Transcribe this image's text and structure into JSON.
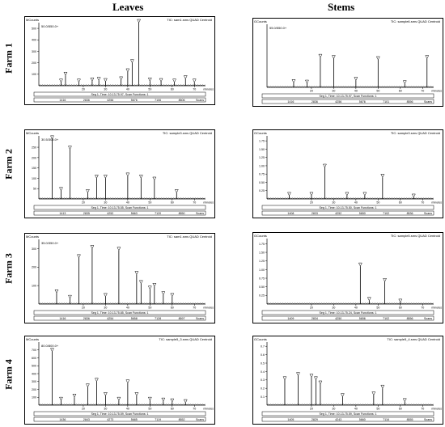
{
  "columns": [
    "Leaves",
    "Stems"
  ],
  "farms": [
    "Farm 1",
    "Farm 2",
    "Farm 3",
    "Farm 4"
  ],
  "chart_data": [
    {
      "type": "line",
      "farm": "Farm 1",
      "tissue": "Leaves",
      "title": "TIC: sam1.sms QUAD Centroid",
      "y_unit": "MCounts",
      "y_top_label": "50.0/550.0+",
      "y_ticks": [
        "100",
        "200",
        "300",
        "400",
        "500"
      ],
      "ylim": [
        0,
        550
      ],
      "xlim": [
        0,
        75
      ],
      "x_ticks": [
        "20",
        "30",
        "40",
        "50",
        "60",
        "70"
      ],
      "xlabel": "minutes",
      "scan_ticks": [
        "1416",
        "2836",
        "4256",
        "5676",
        "7106",
        "8506"
      ],
      "scan_unit": "Scans",
      "footer": "Seg 1, Time: 10.13-75.97, Scan Functions: 1",
      "peaks": [
        [
          10,
          30
        ],
        [
          12,
          90
        ],
        [
          18,
          30
        ],
        [
          24,
          40
        ],
        [
          27,
          45
        ],
        [
          30,
          35
        ],
        [
          37,
          50
        ],
        [
          40,
          120
        ],
        [
          42,
          200
        ],
        [
          45,
          550
        ],
        [
          50,
          40
        ],
        [
          55,
          35
        ],
        [
          61,
          30
        ],
        [
          66,
          60
        ],
        [
          70,
          30
        ]
      ]
    },
    {
      "type": "line",
      "farm": "Farm 1",
      "tissue": "Stems",
      "title": "TIC: sample6.sms QUAD Centroid",
      "y_unit": "GCounts",
      "y_top_label": "55.0/550.0+",
      "y_ticks": [],
      "ylim": [
        0,
        550
      ],
      "xlim": [
        0,
        75
      ],
      "x_ticks": [
        "20",
        "30",
        "40",
        "50",
        "60",
        "70"
      ],
      "xlabel": "minutes",
      "scan_ticks": [
        "1416",
        "2836",
        "4256",
        "5676",
        "7101",
        "8556"
      ],
      "scan_unit": "Scans",
      "footer": "Seg 1, Time: 10.13-75.97, Scan Functions: 1",
      "peaks": [
        [
          12,
          40
        ],
        [
          18,
          35
        ],
        [
          24,
          260
        ],
        [
          30,
          250
        ],
        [
          40,
          60
        ],
        [
          50,
          240
        ],
        [
          62,
          30
        ],
        [
          72,
          250
        ]
      ]
    },
    {
      "type": "line",
      "farm": "Farm 2",
      "tissue": "Leaves",
      "title": "TIC: sample3.sms QUAD Centroid",
      "y_unit": "MCounts",
      "y_top_label": "30.5/305.0+",
      "y_ticks": [
        "50",
        "100",
        "150",
        "200",
        "250"
      ],
      "ylim": [
        0,
        305
      ],
      "xlim": [
        0,
        75
      ],
      "x_ticks": [
        "20",
        "30",
        "40",
        "50",
        "60",
        "70"
      ],
      "xlabel": "minutes",
      "scan_ticks": [
        "1413",
        "2835",
        "4252",
        "5663",
        "7120",
        "8550"
      ],
      "scan_unit": "Scans",
      "footer": "Seg 1, Time: 10.13-75.55, Scan Functions: 1",
      "peaks": [
        [
          6,
          290
        ],
        [
          10,
          40
        ],
        [
          14,
          240
        ],
        [
          22,
          30
        ],
        [
          26,
          100
        ],
        [
          30,
          100
        ],
        [
          40,
          110
        ],
        [
          46,
          100
        ],
        [
          52,
          90
        ],
        [
          62,
          30
        ]
      ]
    },
    {
      "type": "line",
      "farm": "Farm 2",
      "tissue": "Stems",
      "title": "TIC: sample3.sms QUAD Centroid",
      "y_unit": "GCounts",
      "y_top_label": "",
      "y_ticks": [
        "0.25",
        "0.50",
        "0.75",
        "1.00",
        "1.25",
        "1.50",
        "1.75"
      ],
      "ylim": [
        0,
        1.9
      ],
      "xlim": [
        0,
        75
      ],
      "x_ticks": [
        "20",
        "30",
        "40",
        "50",
        "60",
        "70"
      ],
      "xlabel": "minutes",
      "scan_ticks": [
        "1408",
        "2833",
        "4252",
        "5650",
        "7102",
        "8536"
      ],
      "scan_unit": "Scans",
      "footer": "Seg 1, Time: 10.13-75.50, Scan Functions: 1",
      "peaks": [
        [
          10,
          0.1
        ],
        [
          20,
          0.1
        ],
        [
          26,
          0.95
        ],
        [
          36,
          0.1
        ],
        [
          44,
          0.1
        ],
        [
          52,
          0.65
        ],
        [
          66,
          0.05
        ]
      ]
    },
    {
      "type": "line",
      "farm": "Farm 3",
      "tissue": "Leaves",
      "title": "TIC: sam1.sms QUAD Centroid",
      "y_unit": "MCounts",
      "y_top_label": "35.0/350.0+",
      "y_ticks": [
        "100",
        "200",
        "300"
      ],
      "ylim": [
        0,
        350
      ],
      "xlim": [
        0,
        75
      ],
      "x_ticks": [
        "20",
        "30",
        "40",
        "50",
        "60",
        "70"
      ],
      "xlabel": "minutes",
      "scan_ticks": [
        "1416",
        "2836",
        "4254",
        "5658",
        "7128",
        "8597"
      ],
      "scan_unit": "Scans",
      "footer": "Seg 1, Time: 10.13-75.85, Scan Functions: 1",
      "peaks": [
        [
          8,
          60
        ],
        [
          14,
          30
        ],
        [
          18,
          250
        ],
        [
          24,
          300
        ],
        [
          30,
          40
        ],
        [
          36,
          290
        ],
        [
          44,
          160
        ],
        [
          46,
          110
        ],
        [
          50,
          80
        ],
        [
          52,
          95
        ],
        [
          56,
          50
        ],
        [
          60,
          40
        ]
      ]
    },
    {
      "type": "line",
      "farm": "Farm 3",
      "tissue": "Stems",
      "title": "TIC: sample5.sms QUAD Centroid",
      "y_unit": "GCounts",
      "y_top_label": "",
      "y_ticks": [
        "0.25",
        "0.50",
        "0.75",
        "1.00",
        "1.25",
        "1.50",
        "1.75"
      ],
      "ylim": [
        0,
        1.9
      ],
      "xlim": [
        0,
        75
      ],
      "x_ticks": [
        "20",
        "30",
        "40",
        "50",
        "60",
        "70"
      ],
      "xlabel": "minutes",
      "scan_ticks": [
        "1409",
        "2834",
        "4250",
        "5656",
        "7102",
        "8556"
      ],
      "scan_unit": "Scans",
      "footer": "Seg 1, Time: 10.13-75.24, Scan Functions: 1",
      "peaks": [
        [
          42,
          1.1
        ],
        [
          46,
          0.1
        ],
        [
          53,
          0.65
        ],
        [
          60,
          0.05
        ]
      ]
    },
    {
      "type": "line",
      "farm": "Farm 4",
      "tissue": "Leaves",
      "title": "TIC: sample5_3.sms QUAD Centroid",
      "y_unit": "MCounts",
      "y_top_label": "80.0/800.0+",
      "y_ticks": [
        "100",
        "200",
        "300",
        "400",
        "500",
        "600",
        "700"
      ],
      "ylim": [
        0,
        800
      ],
      "xlim": [
        0,
        75
      ],
      "x_ticks": [
        "20",
        "30",
        "40",
        "50",
        "60",
        "70"
      ],
      "xlabel": "minutes",
      "scan_ticks": [
        "1436",
        "2843",
        "4273",
        "5685",
        "7119",
        "8552"
      ],
      "scan_unit": "Scans",
      "footer": "Seg 1, Time: 10.13-75.59, Scan Functions: 1",
      "peaks": [
        [
          6,
          680
        ],
        [
          10,
          60
        ],
        [
          16,
          100
        ],
        [
          22,
          230
        ],
        [
          26,
          300
        ],
        [
          30,
          120
        ],
        [
          36,
          60
        ],
        [
          40,
          280
        ],
        [
          44,
          120
        ],
        [
          50,
          60
        ],
        [
          56,
          50
        ],
        [
          60,
          40
        ],
        [
          66,
          30
        ]
      ]
    },
    {
      "type": "line",
      "farm": "Farm 4",
      "tissue": "Stems",
      "title": "TIC: sample5_4.sms QUAD Centroid",
      "y_unit": "GCounts",
      "y_top_label": "",
      "y_ticks": [
        "0.1",
        "0.2",
        "0.3",
        "0.4",
        "0.5",
        "0.6",
        "0.7"
      ],
      "ylim": [
        0,
        0.75
      ],
      "xlim": [
        0,
        75
      ],
      "x_ticks": [
        "20",
        "30",
        "40",
        "50",
        "60",
        "70"
      ],
      "xlabel": "minutes",
      "scan_ticks": [
        "1405",
        "2829",
        "4243",
        "5660",
        "7116",
        "8555"
      ],
      "scan_unit": "Scans",
      "footer": "Seg 1, Time: 10.13-75.59, Scan Functions: 1",
      "peaks": [
        [
          8,
          0.3
        ],
        [
          14,
          0.35
        ],
        [
          20,
          0.33
        ],
        [
          22,
          0.3
        ],
        [
          24,
          0.25
        ],
        [
          34,
          0.1
        ],
        [
          48,
          0.12
        ],
        [
          52,
          0.2
        ],
        [
          62,
          0.04
        ]
      ]
    }
  ]
}
